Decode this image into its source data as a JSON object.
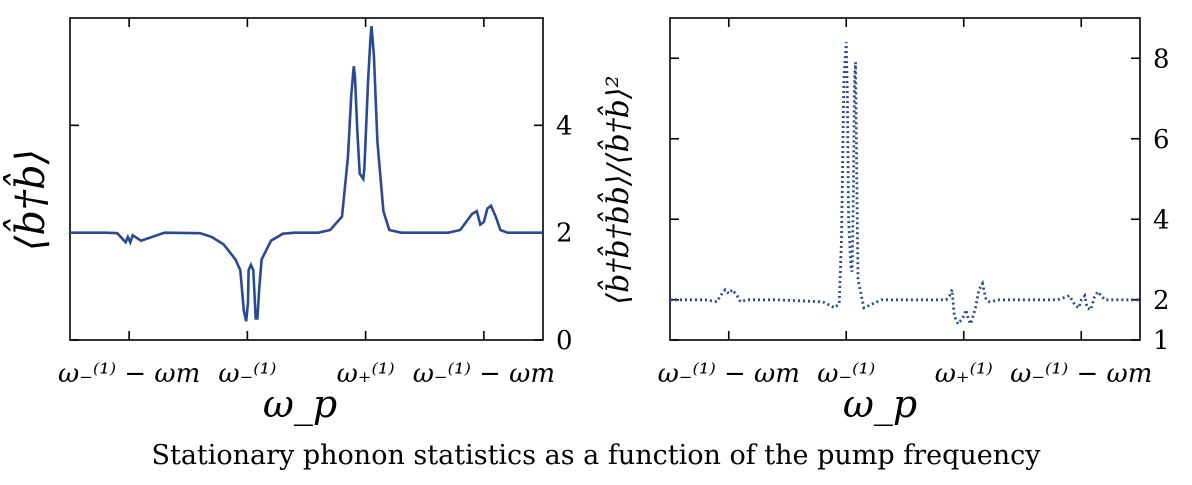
{
  "caption": "Stationary phonon statistics as a function of the pump frequency",
  "chart_data": [
    {
      "type": "line",
      "title": "",
      "xlabel": "ω_p",
      "ylabel": "⟨b̂†b̂⟩",
      "x_ticks": [
        "ω₋⁽¹⁾ − ωm",
        "ω₋⁽¹⁾",
        "ω₊⁽¹⁾",
        "ω₋⁽¹⁾ − ωm"
      ],
      "x_tick_positions": [
        -2,
        -1,
        0,
        1
      ],
      "xlim": [
        -2.5,
        1.5
      ],
      "y_ticks": [
        0,
        2,
        4
      ],
      "ylim": [
        0,
        6
      ],
      "y_axis_side": "right",
      "line_style": "solid",
      "color": "#2b4a93",
      "series": [
        {
          "x": [
            -2.5,
            -2.2,
            -2.1,
            -2.03,
            -2.01,
            -1.99,
            -1.97,
            -1.9,
            -1.7,
            -1.4,
            -1.3,
            -1.2,
            -1.1,
            -1.06,
            -1.03,
            -1.01,
            -0.995,
            -0.99,
            -0.97,
            -0.95,
            -0.93,
            -0.915,
            -0.9,
            -0.88,
            -0.8,
            -0.7,
            -0.6,
            -0.4,
            -0.3,
            -0.2,
            -0.15,
            -0.12,
            -0.1,
            -0.09,
            -0.07,
            -0.05,
            -0.02,
            -0.01,
            0.02,
            0.04,
            0.05,
            0.07,
            0.1,
            0.15,
            0.2,
            0.3,
            0.5,
            0.7,
            0.8,
            0.9,
            0.94,
            0.97,
            1.0,
            1.03,
            1.06,
            1.1,
            1.14,
            1.2,
            1.3,
            1.5
          ],
          "y": [
            2.0,
            2.0,
            1.99,
            1.82,
            1.92,
            1.82,
            1.95,
            1.85,
            2.0,
            1.99,
            1.92,
            1.78,
            1.5,
            1.3,
            0.55,
            0.35,
            0.7,
            1.3,
            1.4,
            1.3,
            0.4,
            0.4,
            0.95,
            1.5,
            1.85,
            1.98,
            2.0,
            2.0,
            2.05,
            2.3,
            3.4,
            4.6,
            5.1,
            4.9,
            3.9,
            3.1,
            3.0,
            3.2,
            4.8,
            5.6,
            5.85,
            5.3,
            3.7,
            2.4,
            2.05,
            2.0,
            2.0,
            2.0,
            2.05,
            2.35,
            2.4,
            2.15,
            2.2,
            2.45,
            2.5,
            2.3,
            2.05,
            2.0,
            2.0,
            2.0
          ]
        }
      ]
    },
    {
      "type": "line",
      "title": "",
      "xlabel": "ω_p",
      "ylabel": "⟨b̂†b̂†b̂b̂⟩/⟨b̂†b̂⟩²",
      "x_ticks": [
        "ω₋⁽¹⁾ − ωm",
        "ω₋⁽¹⁾",
        "ω₊⁽¹⁾",
        "ω₋⁽¹⁾ − ωm"
      ],
      "x_tick_positions": [
        -2,
        -1,
        0,
        1
      ],
      "xlim": [
        -2.5,
        1.5
      ],
      "y_ticks": [
        1,
        2,
        4,
        6,
        8
      ],
      "ylim": [
        1,
        9
      ],
      "y_axis_side": "right",
      "line_style": "dotted",
      "color": "#2b4a93",
      "series": [
        {
          "x": [
            -2.5,
            -2.2,
            -2.1,
            -2.07,
            -2.03,
            -2.0,
            -1.97,
            -1.93,
            -1.9,
            -1.85,
            -1.6,
            -1.2,
            -1.1,
            -1.06,
            -1.04,
            -1.03,
            -1.02,
            -1.0,
            -0.99,
            -0.98,
            -0.96,
            -0.95,
            -0.94,
            -0.93,
            -0.92,
            -0.91,
            -0.9,
            -0.85,
            -0.7,
            -0.3,
            -0.2,
            -0.15,
            -0.12,
            -0.1,
            -0.08,
            -0.05,
            -0.02,
            0.0,
            0.02,
            0.04,
            0.06,
            0.08,
            0.1,
            0.13,
            0.16,
            0.19,
            0.22,
            0.3,
            0.6,
            0.8,
            0.9,
            0.95,
            0.98,
            1.0,
            1.03,
            1.05,
            1.08,
            1.11,
            1.14,
            1.2,
            1.5
          ],
          "y": [
            2.0,
            2.0,
            1.95,
            2.1,
            2.25,
            2.15,
            2.25,
            2.1,
            1.95,
            2.0,
            2.0,
            1.95,
            1.8,
            1.9,
            3.5,
            5.5,
            7.5,
            8.4,
            7.0,
            4.0,
            2.8,
            2.7,
            4.5,
            7.5,
            7.9,
            5.0,
            2.5,
            1.8,
            2.0,
            2.0,
            2.0,
            2.0,
            2.1,
            2.25,
            1.6,
            1.4,
            1.5,
            1.6,
            1.75,
            1.5,
            1.4,
            1.6,
            1.8,
            2.25,
            2.4,
            2.0,
            1.95,
            2.0,
            2.0,
            2.0,
            2.1,
            1.85,
            1.8,
            2.0,
            2.1,
            1.8,
            1.75,
            2.05,
            2.2,
            2.0,
            2.0
          ]
        }
      ]
    }
  ]
}
